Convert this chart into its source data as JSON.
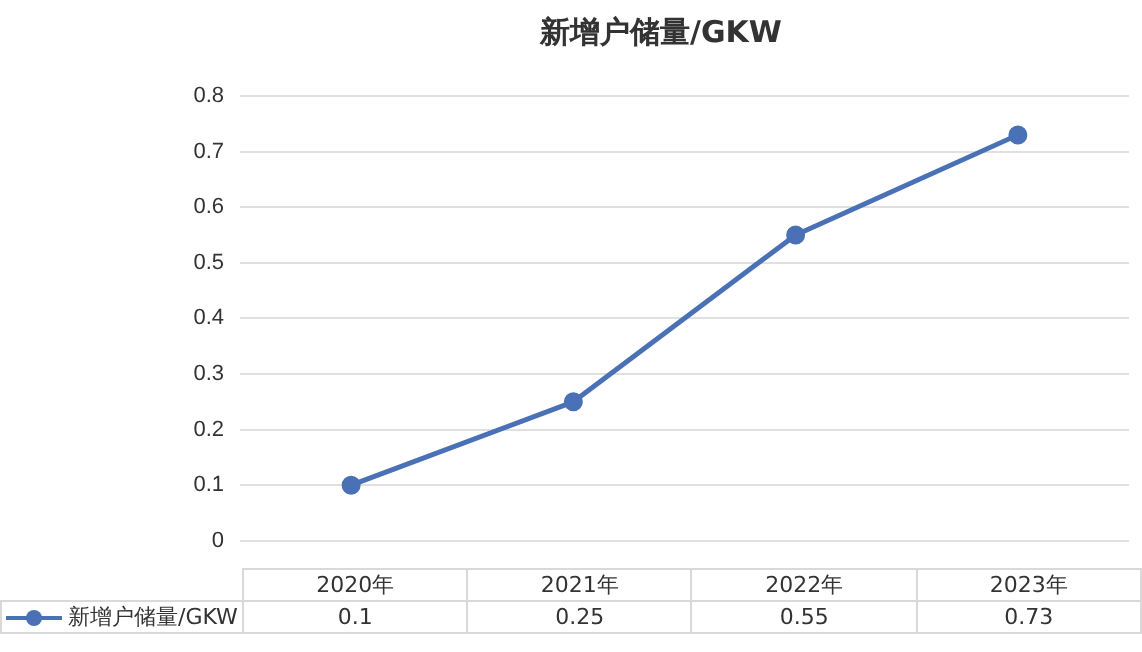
{
  "chart_data": {
    "type": "line",
    "title": "新增户储量/GKW",
    "categories": [
      "2020年",
      "2021年",
      "2022年",
      "2023年"
    ],
    "series": [
      {
        "name": "新增户储量/GKW",
        "color": "#4a71b5",
        "values": [
          0.1,
          0.25,
          0.55,
          0.73
        ]
      }
    ],
    "ylim": [
      0,
      0.8
    ],
    "yticks": [
      0,
      0.1,
      0.2,
      0.3,
      0.4,
      0.5,
      0.6,
      0.7,
      0.8
    ],
    "grid": "y",
    "marker": "circle",
    "line_style": "solid",
    "data_labels": true,
    "legend": "bottom"
  }
}
